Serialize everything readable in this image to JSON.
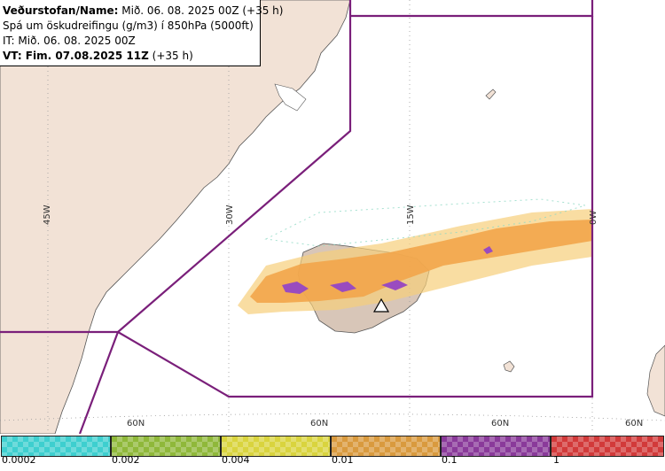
{
  "header": {
    "line1_label": "Veðurstofan/Name:",
    "line1_value": " Mið. 06. 08. 2025 00Z (+35 h)",
    "line2": "Spá um öskudreifingu (g/m3) í 850hPa (5000ft)",
    "line3": "IT: Mið. 06. 08. 2025 00Z",
    "line4_label": "VT: Fim. 07.08.2025 11Z",
    "line4_value": " (+35 h)"
  },
  "map": {
    "longitude_labels": [
      "45W",
      "30W",
      "15W",
      "0W"
    ],
    "latitude_labels": [
      "60N",
      "60N",
      "60N",
      "60N"
    ],
    "colors": {
      "land": "#f2e2d6",
      "sea": "#ffffff",
      "coast": "#555555",
      "boundary": "#7a1f7a",
      "grid": "#9a9a9a",
      "ash_main": "#f2a54a",
      "ash_light": "#f7cf7a",
      "ash_high": "#9a4bbf"
    },
    "volcano_icon": "volcano-triangle-icon"
  },
  "legend": {
    "swatches": [
      {
        "color": "#3ecfcf",
        "name": "cyan"
      },
      {
        "color": "#8fb83a",
        "name": "olive"
      },
      {
        "color": "#d9d43e",
        "name": "yellow"
      },
      {
        "color": "#d99a3e",
        "name": "orange"
      },
      {
        "color": "#8a3a9a",
        "name": "purple"
      },
      {
        "color": "#d23a3a",
        "name": "red"
      }
    ],
    "labels": [
      "0.0002",
      "0.002",
      "0.004",
      "0.01",
      "0.1",
      "1"
    ]
  }
}
